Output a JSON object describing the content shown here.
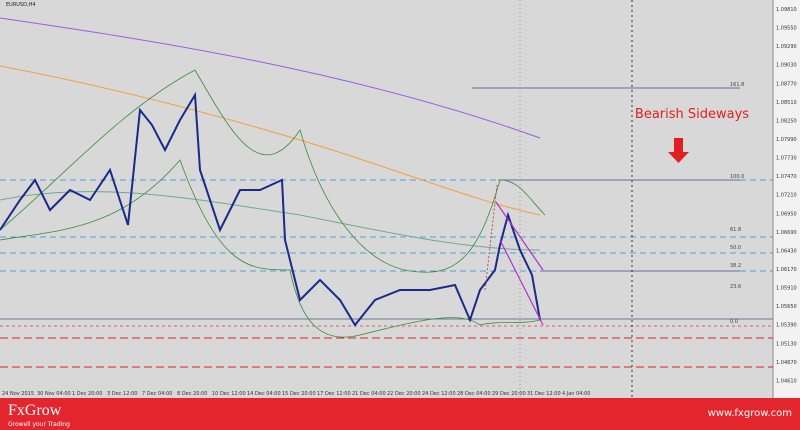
{
  "header": {
    "title": "EURUSD,H4"
  },
  "annotation": {
    "text": "Bearish Sideways"
  },
  "fib_levels": [
    "161.8",
    "100.0",
    "61.8",
    "50.0",
    "38.2",
    "23.6",
    "0.0"
  ],
  "price_axis": [
    "1.09810",
    "1.09550",
    "1.09290",
    "1.09030",
    "1.08770",
    "1.08510",
    "1.08250",
    "1.07990",
    "1.07730",
    "1.07470",
    "1.07210",
    "1.06950",
    "1.06690",
    "1.06430",
    "1.06170",
    "1.05910",
    "1.05650",
    "1.05390",
    "1.05130",
    "1.04870",
    "1.04610"
  ],
  "time_axis": [
    "24 Nov 2015",
    "30 Nov 04:00",
    "1 Dec 20:00",
    "3 Dec 12:00",
    "7 Dec 04:00",
    "8 Dec 20:00",
    "10 Dec 12:00",
    "14 Dec 04:00",
    "15 Dec 20:00",
    "17 Dec 12:00",
    "21 Dec 04:00",
    "22 Dec 20:00",
    "24 Dec 12:00",
    "28 Dec 04:00",
    "29 Dec 20:00",
    "31 Dec 12:00",
    "4 Jan 04:00"
  ],
  "footer": {
    "brand": "FxGrow",
    "slogan": "Growell your Trading",
    "url": "www.fxgrow.com"
  }
}
